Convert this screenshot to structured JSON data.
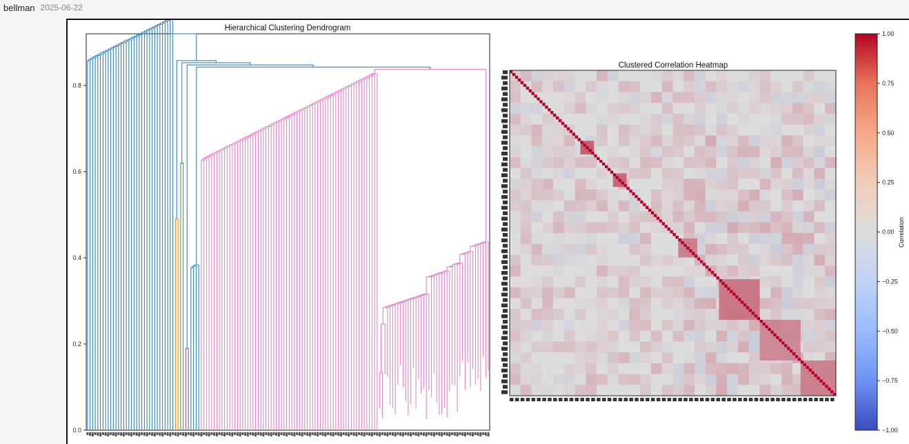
{
  "post": {
    "author": "bellman",
    "date": "2025-06-22"
  },
  "colors": {
    "cluster_blue": "#1f77b4",
    "cluster_orange": "#ff7f0e",
    "cluster_green": "#2ca02c",
    "cluster_red": "#d62728",
    "cluster_pink": "#e377c2",
    "heat_low": "#3b4cc0",
    "heat_mid": "#dddddd",
    "heat_high": "#b40426"
  },
  "chart_data": [
    {
      "type": "dendrogram",
      "title": "Hierarchical Clustering Dendrogram",
      "xlabel": "",
      "ylabel": "",
      "ylim": [
        0,
        0.92
      ],
      "yticks": [
        0.0,
        0.2,
        0.4,
        0.6,
        0.8
      ],
      "ytick_labels": [
        "0.0",
        "0.2",
        "0.4",
        "0.6",
        "0.8"
      ],
      "root_height": 0.92,
      "clusters": [
        {
          "color": "blue",
          "leaf_count": 34,
          "merge_height": 0.88
        },
        {
          "color": "orange",
          "leaf_count": 2,
          "merge_height": 0.49
        },
        {
          "color": "green",
          "leaf_count": 2,
          "merge_height": 0.62
        },
        {
          "color": "red",
          "leaf_count": 2,
          "merge_height": 0.19
        },
        {
          "color": "blue",
          "leaf_count": 4,
          "merge_height": 0.44
        },
        {
          "color": "pink",
          "leaf_count": 112,
          "merge_height": 0.65
        }
      ],
      "notes": "Leaf labels along the x-axis are too small to read."
    },
    {
      "type": "heatmap",
      "title": "Clustered Correlation Heatmap",
      "n": 120,
      "diagonal": 1.0,
      "blocks": [
        {
          "start": 26,
          "end": 31,
          "value": 0.75
        },
        {
          "start": 38,
          "end": 43,
          "value": 0.7
        },
        {
          "start": 62,
          "end": 69,
          "value": 0.55
        },
        {
          "start": 77,
          "end": 92,
          "value": 0.6
        },
        {
          "start": 92,
          "end": 107,
          "value": 0.5
        },
        {
          "start": 107,
          "end": 120,
          "value": 0.55
        }
      ],
      "colorbar": {
        "label": "Correlation",
        "range": [
          -1.0,
          1.0
        ],
        "ticks": [
          "1.00",
          "0.75",
          "0.50",
          "0.25",
          "0.00",
          "−0.25",
          "−0.50",
          "−0.75",
          "−1.00"
        ]
      },
      "notes": "Row and column labels are too small to read."
    }
  ]
}
